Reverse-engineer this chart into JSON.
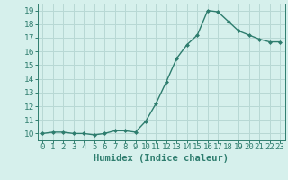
{
  "x": [
    0,
    1,
    2,
    3,
    4,
    5,
    6,
    7,
    8,
    9,
    10,
    11,
    12,
    13,
    14,
    15,
    16,
    17,
    18,
    19,
    20,
    21,
    22,
    23
  ],
  "y": [
    10.0,
    10.1,
    10.1,
    10.0,
    10.0,
    9.9,
    10.0,
    10.2,
    10.2,
    10.1,
    10.9,
    12.2,
    13.8,
    15.5,
    16.5,
    17.2,
    19.0,
    18.9,
    18.2,
    17.5,
    17.2,
    16.9,
    16.7,
    16.7
  ],
  "title": "",
  "xlabel": "Humidex (Indice chaleur)",
  "ylabel": "",
  "xlim": [
    -0.5,
    23.5
  ],
  "ylim": [
    9.5,
    19.5
  ],
  "yticks": [
    10,
    11,
    12,
    13,
    14,
    15,
    16,
    17,
    18,
    19
  ],
  "xticks": [
    0,
    1,
    2,
    3,
    4,
    5,
    6,
    7,
    8,
    9,
    10,
    11,
    12,
    13,
    14,
    15,
    16,
    17,
    18,
    19,
    20,
    21,
    22,
    23
  ],
  "line_color": "#2e7d6e",
  "marker": "D",
  "marker_size": 2.0,
  "bg_color": "#d6f0ec",
  "grid_color": "#b8d8d4",
  "axes_color": "#2e7d6e",
  "tick_color": "#2e7d6e",
  "label_color": "#2e7d6e",
  "xlabel_fontsize": 7.5,
  "tick_fontsize": 6.5
}
